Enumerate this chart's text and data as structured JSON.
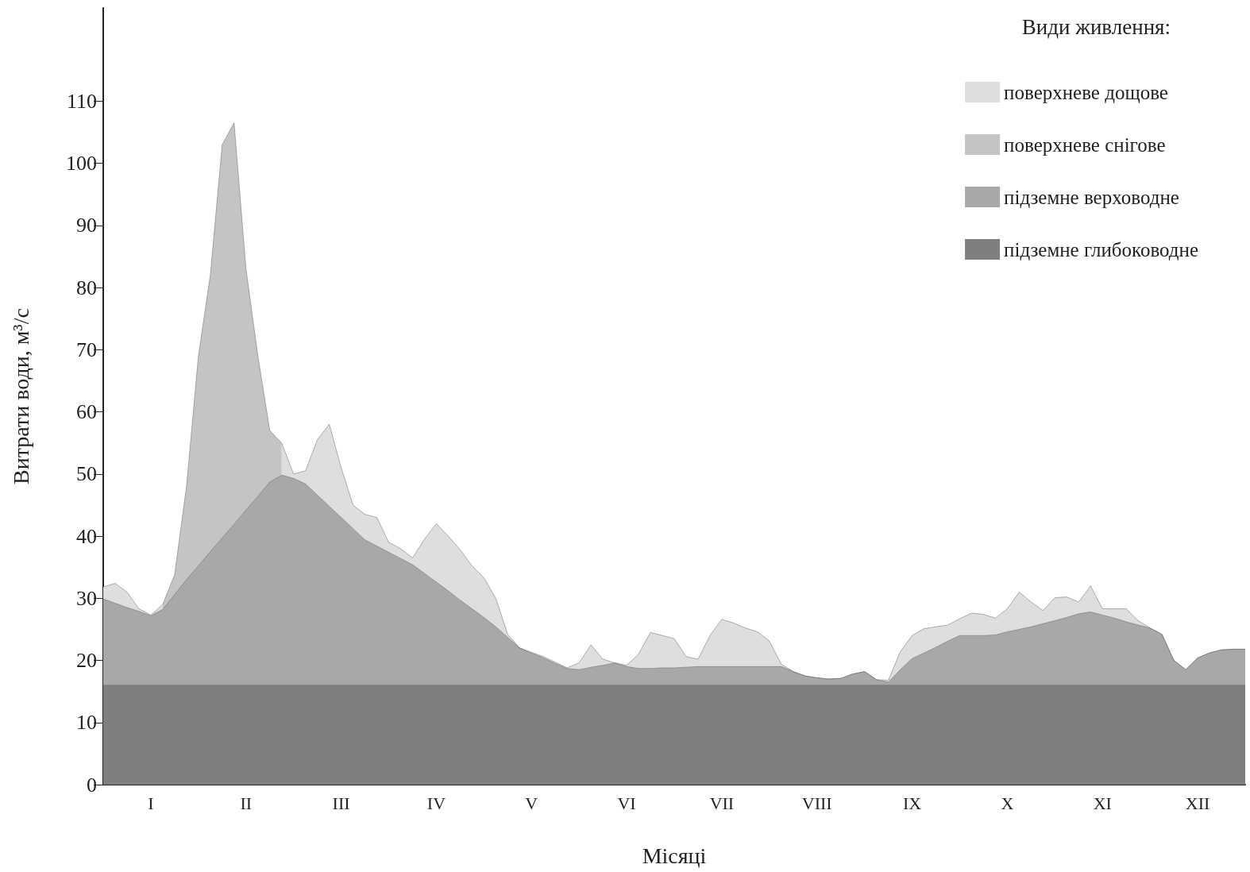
{
  "chart_data": {
    "type": "area",
    "xlabel": "Місяці",
    "ylabel": "Витрати води, м³/с",
    "legend_title": "Види живлення:",
    "categories": [
      null,
      null,
      null,
      null,
      "I",
      null,
      null,
      null,
      null,
      null,
      null,
      null,
      "II",
      null,
      null,
      null,
      null,
      null,
      null,
      null,
      "III",
      null,
      null,
      null,
      null,
      null,
      null,
      null,
      "IV",
      null,
      null,
      null,
      null,
      null,
      null,
      null,
      "V",
      null,
      null,
      null,
      null,
      null,
      null,
      null,
      "VI",
      null,
      null,
      null,
      null,
      null,
      null,
      null,
      "VII",
      null,
      null,
      null,
      null,
      null,
      null,
      null,
      "VIII",
      null,
      null,
      null,
      null,
      null,
      null,
      null,
      "IX",
      null,
      null,
      null,
      null,
      null,
      null,
      null,
      "X",
      null,
      null,
      null,
      null,
      null,
      null,
      null,
      "XI",
      null,
      null,
      null,
      null,
      null,
      null,
      null,
      "XII",
      null,
      null,
      null,
      null
    ],
    "ylim": [
      0,
      125
    ],
    "yticks": [
      0,
      10,
      20,
      30,
      40,
      50,
      60,
      70,
      80,
      90,
      100,
      110
    ],
    "legend": "top right",
    "marker": "none",
    "line_style": "solid",
    "series": [
      {
        "name": "поверхневе дощове",
        "color": "#dedede",
        "values": [
          31.8,
          32.4,
          31.0,
          28.3,
          27.3,
          29.0,
          null,
          null,
          null,
          null,
          null,
          null,
          null,
          null,
          null,
          55,
          50,
          50.5,
          55.5,
          58,
          51,
          45,
          43.5,
          43,
          39,
          38,
          36.5,
          39.5,
          42,
          40,
          37.8,
          35.2,
          33.3,
          30,
          24.2,
          22,
          21.3,
          20.6,
          19.7,
          18.8,
          19.6,
          22.5,
          20.2,
          19.6,
          19.2,
          21,
          24.5,
          24,
          23.5,
          20.6,
          20.2,
          24,
          26.6,
          26,
          25.2,
          24.6,
          23.1,
          19.4,
          18.2,
          17.5,
          17.2,
          17,
          17.1,
          17.8,
          18.2,
          16.9,
          16.8,
          21.4,
          24,
          25.1,
          25.4,
          25.7,
          26.7,
          27.6,
          27.4,
          26.8,
          28.3,
          31,
          29.4,
          28,
          30.1,
          30.2,
          29.4,
          32,
          28.3,
          28.3,
          28.3,
          26.4,
          25.2,
          24.2,
          20,
          18.5,
          20.4,
          21.2,
          21.7,
          21.8,
          21.8
        ]
      },
      {
        "name": "поверхневе снігове",
        "color": "#c4c4c4",
        "values": [
          null,
          null,
          null,
          null,
          null,
          29.0,
          33.8,
          48,
          69,
          82,
          103,
          106.5,
          83,
          69,
          57,
          55,
          null,
          null,
          null,
          null,
          null,
          null,
          null,
          null,
          null,
          null,
          null,
          null,
          null,
          null,
          null,
          null,
          null,
          null,
          null,
          null,
          null,
          null,
          null,
          null,
          null,
          null,
          null,
          null,
          null,
          null,
          null,
          null,
          null,
          null,
          null,
          null,
          null,
          null,
          null,
          null,
          null,
          null,
          null,
          null,
          null,
          null,
          null,
          null,
          null,
          null,
          null,
          null,
          null,
          null,
          null,
          null,
          null,
          null,
          null,
          null,
          null,
          null,
          null,
          null,
          null,
          null,
          null,
          null,
          null,
          null,
          null,
          null,
          null,
          null,
          null,
          null,
          null,
          null,
          null,
          null,
          null
        ]
      },
      {
        "name": "підземне верховодне",
        "color": "#a8a8a8",
        "values": [
          29.9,
          29.2,
          28.5,
          27.9,
          27.2,
          28.2,
          30.6,
          33.0,
          35.2,
          37.5,
          39.7,
          41.9,
          44.2,
          46.4,
          48.7,
          49.8,
          49.3,
          48.4,
          46.6,
          44.8,
          43.0,
          41.2,
          39.4,
          38.4,
          37.4,
          36.4,
          35.4,
          34.0,
          32.6,
          31.2,
          29.7,
          28.3,
          26.9,
          25.4,
          23.7,
          22.0,
          21.2,
          20.4,
          19.5,
          18.7,
          18.5,
          18.9,
          19.2,
          19.6,
          19.0,
          18.7,
          18.7,
          18.8,
          18.8,
          18.9,
          19,
          19,
          19,
          19,
          19,
          19,
          19,
          19,
          18.2,
          17.5,
          17.2,
          17,
          17.1,
          17.8,
          18.2,
          16.9,
          16.5,
          18.5,
          20.3,
          21.2,
          22.1,
          23.1,
          24,
          24,
          24,
          24.1,
          24.6,
          25.0,
          25.4,
          25.9,
          26.4,
          26.9,
          27.5,
          27.8,
          27.3,
          26.8,
          26.2,
          25.7,
          25.2,
          24.2,
          20,
          18.5,
          20.4,
          21.2,
          21.7,
          21.8,
          21.8
        ]
      },
      {
        "name": "підземне глибоководне",
        "color": "#7f7f7f",
        "values": [
          16,
          16,
          16,
          16,
          16,
          16,
          16,
          16,
          16,
          16,
          16,
          16,
          16,
          16,
          16,
          16,
          16,
          16,
          16,
          16,
          16,
          16,
          16,
          16,
          16,
          16,
          16,
          16,
          16,
          16,
          16,
          16,
          16,
          16,
          16,
          16,
          16,
          16,
          16,
          16,
          16,
          16,
          16,
          16,
          16,
          16,
          16,
          16,
          16,
          16,
          16,
          16,
          16,
          16,
          16,
          16,
          16,
          16,
          16,
          16,
          16,
          16,
          16,
          16,
          16,
          16,
          16,
          16,
          16,
          16,
          16,
          16,
          16,
          16,
          16,
          16,
          16,
          16,
          16,
          16,
          16,
          16,
          16,
          16,
          16,
          16,
          16,
          16,
          16,
          16,
          16,
          16,
          16,
          16,
          16,
          16,
          16
        ]
      }
    ]
  }
}
